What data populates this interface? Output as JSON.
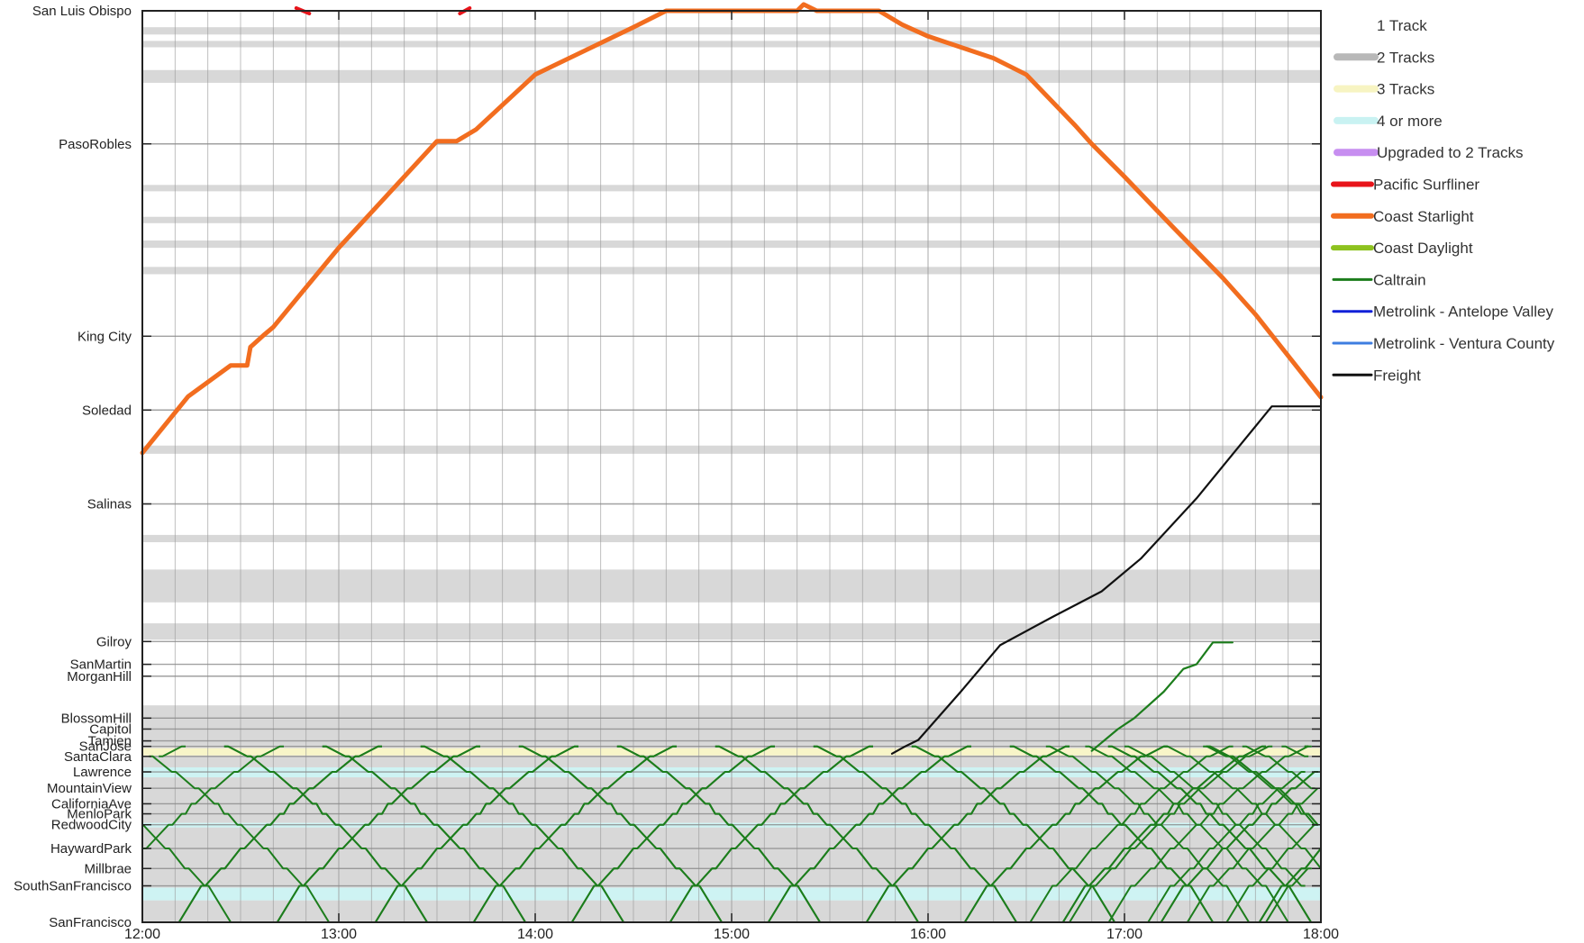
{
  "chart_data": {
    "type": "line",
    "title": "",
    "xlabel": "",
    "ylabel": "",
    "xlim": [
      "12:00",
      "18:00"
    ],
    "x_ticks": [
      "12:00",
      "13:00",
      "14:00",
      "15:00",
      "16:00",
      "17:00",
      "18:00"
    ],
    "y_axis": "stations (milepost order, San Francisco at bottom)",
    "grid": "on",
    "legend_position": "right",
    "stations": [
      {
        "name": "San Luis Obispo",
        "pos": 0.0
      },
      {
        "name": "PasoRobles",
        "pos": 14.6
      },
      {
        "name": "King City",
        "pos": 35.7
      },
      {
        "name": "Soledad",
        "pos": 43.8
      },
      {
        "name": "Salinas",
        "pos": 54.1
      },
      {
        "name": "Gilroy",
        "pos": 69.2
      },
      {
        "name": "SanMartin",
        "pos": 71.7
      },
      {
        "name": "MorganHill",
        "pos": 73.0
      },
      {
        "name": "BlossomHill",
        "pos": 77.6
      },
      {
        "name": "Capitol",
        "pos": 78.8
      },
      {
        "name": "Tamien",
        "pos": 80.1
      },
      {
        "name": "SanJose",
        "pos": 80.7
      },
      {
        "name": "SantaClara",
        "pos": 81.8
      },
      {
        "name": "Lawrence",
        "pos": 83.5
      },
      {
        "name": "MountainView",
        "pos": 85.3
      },
      {
        "name": "CaliforniaAve",
        "pos": 87.0
      },
      {
        "name": "MenloPark",
        "pos": 88.1
      },
      {
        "name": "RedwoodCity",
        "pos": 89.3
      },
      {
        "name": "HaywardPark",
        "pos": 91.9
      },
      {
        "name": "Millbrae",
        "pos": 94.1
      },
      {
        "name": "SouthSanFrancisco",
        "pos": 96.0
      },
      {
        "name": "SanFrancisco",
        "pos": 100.0
      }
    ],
    "track_bands": [
      {
        "from": 1.8,
        "to": 2.6,
        "tracks": "2 Tracks"
      },
      {
        "from": 3.3,
        "to": 4.0,
        "tracks": "2 Tracks"
      },
      {
        "from": 6.5,
        "to": 7.9,
        "tracks": "2 Tracks"
      },
      {
        "from": 19.1,
        "to": 19.8,
        "tracks": "2 Tracks"
      },
      {
        "from": 22.6,
        "to": 23.3,
        "tracks": "2 Tracks"
      },
      {
        "from": 25.2,
        "to": 26.0,
        "tracks": "2 Tracks"
      },
      {
        "from": 28.1,
        "to": 28.9,
        "tracks": "2 Tracks"
      },
      {
        "from": 47.7,
        "to": 48.6,
        "tracks": "2 Tracks"
      },
      {
        "from": 57.5,
        "to": 58.3,
        "tracks": "2 Tracks"
      },
      {
        "from": 61.3,
        "to": 64.9,
        "tracks": "2 Tracks"
      },
      {
        "from": 67.2,
        "to": 69.0,
        "tracks": "2 Tracks"
      },
      {
        "from": 76.2,
        "to": 80.9,
        "tracks": "2 Tracks"
      },
      {
        "from": 80.9,
        "to": 81.7,
        "tracks": "3 Tracks"
      },
      {
        "from": 81.7,
        "to": 83.0,
        "tracks": "2 Tracks"
      },
      {
        "from": 83.0,
        "to": 84.1,
        "tracks": "4 or more"
      },
      {
        "from": 84.1,
        "to": 89.1,
        "tracks": "2 Tracks"
      },
      {
        "from": 89.1,
        "to": 89.6,
        "tracks": "4 or more"
      },
      {
        "from": 89.6,
        "to": 96.2,
        "tracks": "2 Tracks"
      },
      {
        "from": 96.2,
        "to": 97.6,
        "tracks": "4 or more"
      },
      {
        "from": 97.6,
        "to": 100.0,
        "tracks": "2 Tracks"
      }
    ],
    "series": [
      {
        "name": "Coast Starlight",
        "points": [
          [
            "12:00",
            48.5
          ],
          [
            "12:14",
            42.3
          ],
          [
            "12:27",
            38.9
          ],
          [
            "12:32",
            38.9
          ],
          [
            "12:33",
            36.9
          ],
          [
            "12:37",
            35.6
          ],
          [
            "12:40",
            34.7
          ],
          [
            "13:00",
            26.0
          ],
          [
            "13:30",
            14.3
          ],
          [
            "13:36",
            14.3
          ],
          [
            "13:42",
            13.0
          ],
          [
            "14:00",
            7.0
          ],
          [
            "14:30",
            1.8
          ],
          [
            "14:40",
            0.0
          ],
          [
            "15:20",
            0.0
          ],
          [
            "15:22",
            -0.7
          ],
          [
            "15:26",
            0.0
          ],
          [
            "15:45",
            0.0
          ],
          [
            "15:52",
            1.5
          ],
          [
            "16:00",
            2.8
          ],
          [
            "16:20",
            5.2
          ],
          [
            "16:30",
            7.0
          ],
          [
            "16:45",
            12.6
          ],
          [
            "16:50",
            14.6
          ],
          [
            "17:00",
            18.2
          ],
          [
            "17:15",
            23.8
          ],
          [
            "17:30",
            29.3
          ],
          [
            "17:40",
            33.3
          ],
          [
            "18:00",
            42.4
          ]
        ]
      },
      {
        "name": "Pacific Surfliner",
        "points": [
          [
            "12:47",
            -0.3
          ],
          [
            "12:51",
            0.3
          ]
        ],
        "segments": [
          [
            [
              "12:47",
              -0.3
            ],
            [
              "12:51",
              0.3
            ]
          ],
          [
            [
              "13:37",
              0.3
            ],
            [
              "13:40",
              -0.3
            ]
          ]
        ]
      },
      {
        "name": "Freight",
        "points": [
          [
            "15:49",
            81.5
          ],
          [
            "15:53",
            80.7
          ],
          [
            "15:57",
            80.0
          ],
          [
            "16:10",
            74.7
          ],
          [
            "16:22",
            69.6
          ],
          [
            "16:38",
            66.5
          ],
          [
            "16:53",
            63.7
          ],
          [
            "17:05",
            60.1
          ],
          [
            "17:22",
            53.5
          ],
          [
            "17:45",
            43.4
          ],
          [
            "18:00",
            43.4
          ]
        ]
      },
      {
        "name": "Caltrain",
        "points": [
          [
            "16:50",
            81.2
          ],
          [
            "16:58",
            78.8
          ],
          [
            "17:03",
            77.6
          ],
          [
            "17:12",
            74.7
          ],
          [
            "17:18",
            72.2
          ],
          [
            "17:22",
            71.7
          ],
          [
            "17:27",
            69.3
          ],
          [
            "17:33",
            69.3
          ]
        ],
        "trip_groups": "repeating southbound/northbound runs between SanFrancisco and SanJose throughout 12:00–18:00, plus one extension to Gilroy"
      }
    ]
  },
  "legend": {
    "items": [
      {
        "label": "1 Track",
        "color": "#ffffff",
        "kind": "band"
      },
      {
        "label": "2 Tracks",
        "color": "#b8b8b8",
        "kind": "band"
      },
      {
        "label": "3 Tracks",
        "color": "#f7f4c2",
        "kind": "band"
      },
      {
        "label": "4 or more",
        "color": "#c9f2f2",
        "kind": "band"
      },
      {
        "label": "Upgraded to 2 Tracks",
        "color": "#c78ef0",
        "kind": "band"
      },
      {
        "label": "Pacific Surfliner",
        "color": "#e8141a",
        "kind": "line"
      },
      {
        "label": "Coast Starlight",
        "color": "#f26d1f",
        "kind": "line"
      },
      {
        "label": "Coast Daylight",
        "color": "#8dc21f",
        "kind": "line"
      },
      {
        "label": "Caltrain",
        "color": "#1c7d1c",
        "kind": "line"
      },
      {
        "label": "Metrolink - Antelope Valley",
        "color": "#1020d8",
        "kind": "line"
      },
      {
        "label": "Metrolink - Ventura County",
        "color": "#3e7de0",
        "kind": "line"
      },
      {
        "label": "Freight",
        "color": "#111111",
        "kind": "line"
      }
    ]
  }
}
